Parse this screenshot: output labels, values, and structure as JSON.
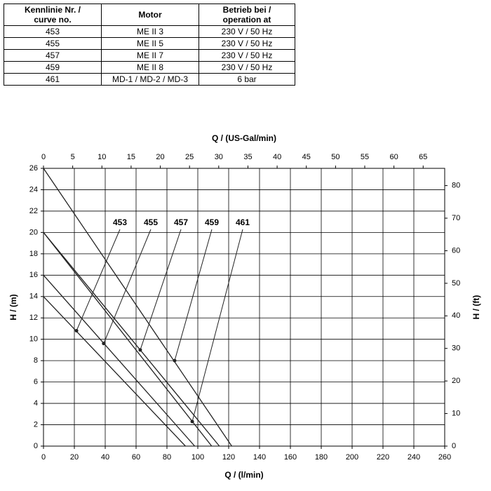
{
  "table": {
    "header": [
      "Kennlinie Nr. /\ncurve no.",
      "Motor",
      "Betrieb bei /\noperation at"
    ],
    "rows": [
      [
        "453",
        "ME II 3",
        "230 V / 50 Hz"
      ],
      [
        "455",
        "ME II 5",
        "230 V / 50 Hz"
      ],
      [
        "457",
        "ME II 7",
        "230 V / 50 Hz"
      ],
      [
        "459",
        "ME II 8",
        "230 V / 50 Hz"
      ],
      [
        "461",
        "MD-1 / MD-2 / MD-3",
        "6 bar"
      ]
    ]
  },
  "chart_data": {
    "type": "line",
    "xlabel": "Q / (l/min)",
    "ylabel": "H / (m)",
    "x2label": "Q / (US-Gal/min)",
    "y2label": "H / (ft)",
    "xlim": [
      0,
      260
    ],
    "xticks": [
      0,
      20,
      40,
      60,
      80,
      100,
      120,
      140,
      160,
      180,
      200,
      220,
      240,
      260
    ],
    "ylim": [
      0,
      26
    ],
    "yticks": [
      0,
      2,
      4,
      6,
      8,
      10,
      12,
      14,
      16,
      18,
      20,
      22,
      24,
      26
    ],
    "x2lim": [
      0,
      68.69
    ],
    "x2ticks": [
      0,
      5,
      10,
      15,
      20,
      25,
      30,
      35,
      40,
      45,
      50,
      55,
      60,
      65
    ],
    "y2lim": [
      0,
      85.3
    ],
    "y2ticks": [
      0,
      10,
      20,
      30,
      40,
      50,
      60,
      70,
      80
    ],
    "grid": true,
    "color": "#222222",
    "series": [
      {
        "name": "453",
        "x": [
          0,
          92
        ],
        "values": [
          14,
          0
        ],
        "marker": {
          "x": 21.4,
          "y": 10.8
        }
      },
      {
        "name": "455",
        "x": [
          0,
          98
        ],
        "values": [
          16,
          0
        ],
        "marker": {
          "x": 39,
          "y": 9.6
        }
      },
      {
        "name": "457",
        "x": [
          0,
          114
        ],
        "values": [
          20,
          0
        ],
        "marker": {
          "x": 62.7,
          "y": 9
        }
      },
      {
        "name": "459",
        "x": [
          0,
          122
        ],
        "values": [
          26,
          0
        ],
        "marker": {
          "x": 85,
          "y": 8
        }
      },
      {
        "name": "461",
        "x": [
          0,
          109
        ],
        "values": [
          20,
          0
        ],
        "marker": {
          "x": 96.4,
          "y": 2.3
        }
      }
    ]
  }
}
